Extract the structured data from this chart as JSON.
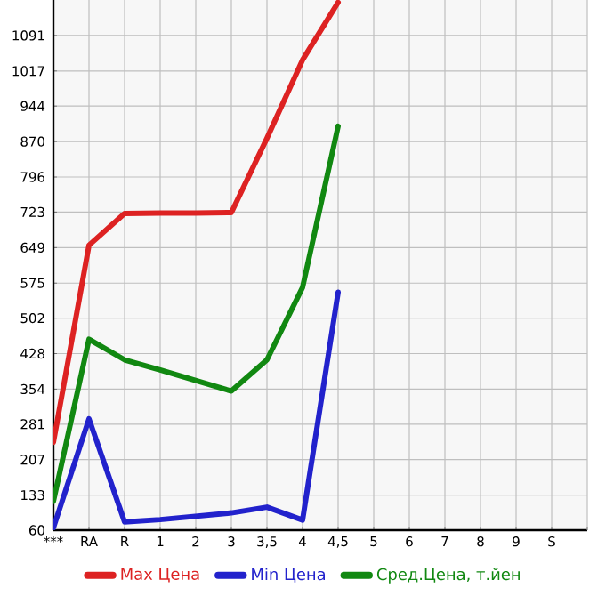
{
  "chart_data": {
    "type": "line",
    "categories": [
      "***",
      "RA",
      "R",
      "1",
      "2",
      "3",
      "3,5",
      "4",
      "4,5",
      "5",
      "6",
      "7",
      "8",
      "9",
      "S"
    ],
    "series": [
      {
        "name": "Max Цена",
        "color": "#dd2222",
        "values": [
          243,
          654,
          720,
          721,
          721,
          722,
          877,
          1040,
          1160,
          null,
          null,
          null,
          null,
          null,
          null
        ]
      },
      {
        "name": "Min Цена",
        "color": "#2222cc",
        "values": [
          65,
          292,
          77,
          82,
          89,
          96,
          108,
          81,
          556,
          null,
          null,
          null,
          null,
          null,
          null
        ]
      },
      {
        "name": "Сред.Цена, т.йен",
        "color": "#118811",
        "values": [
          120,
          458,
          415,
          394,
          372,
          350,
          415,
          566,
          902,
          null,
          null,
          null,
          null,
          null,
          null
        ]
      }
    ],
    "ylim": [
      60,
      1165
    ],
    "yticks": [
      60,
      133,
      207,
      281,
      354,
      428,
      502,
      575,
      649,
      723,
      796,
      870,
      944,
      1017,
      1091
    ],
    "grid": true,
    "legend": "bottom",
    "marker": "none",
    "line_style": "solid"
  }
}
